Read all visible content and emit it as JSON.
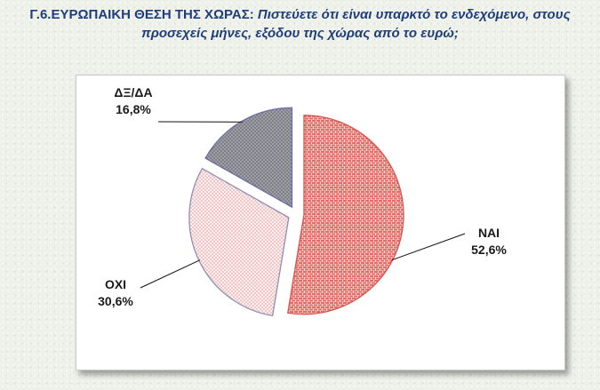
{
  "title": {
    "lead": "Γ.6.ΕΥΡΩΠΑΙΚΗ ΘΕΣΗ ΤΗΣ ΧΩΡΑΣ:",
    "question_line1": " Πιστεύετε ότι είναι υπαρκτό το ενδεχόμενο, στους",
    "question_line2": "προσεχείς μήνες, εξόδου της χώρας από το ευρώ;"
  },
  "chart_data": {
    "type": "pie",
    "title": "Γ.6.ΕΥΡΩΠΑΙΚΗ ΘΕΣΗ ΤΗΣ ΧΩΡΑΣ: Πιστεύετε ότι είναι υπαρκτό το ενδεχόμενο, στους προσεχείς μήνες, εξόδου της χώρας από το ευρώ;",
    "exploded": true,
    "slices": [
      {
        "label": "ΝΑΙ",
        "value": 52.6,
        "value_label": "52,6%",
        "color": "#e8736c",
        "edge": "#d9534f"
      },
      {
        "label": "ΟΧΙ",
        "value": 30.6,
        "value_label": "30,6%",
        "color": "#f2c9c9",
        "edge": "#8f8fb8"
      },
      {
        "label": "ΔΞ/ΔΑ",
        "value": 16.8,
        "value_label": "16,8%",
        "color": "#8a8a92",
        "edge": "#6d6da8"
      }
    ]
  }
}
